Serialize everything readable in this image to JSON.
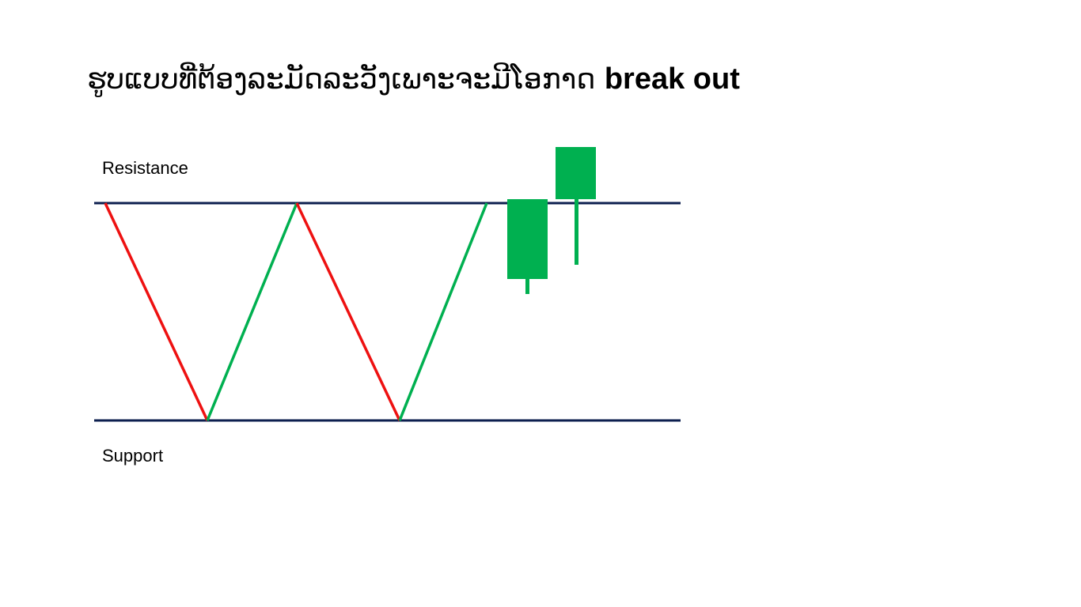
{
  "slide": {
    "title_main": "ຮູບແບບທີ່ຕ້ອງລະມັດລະວັງເພາະຈະມີໂອກາດ ",
    "title_emphasis": "break out"
  },
  "diagram": {
    "resistance_label": "Resistance",
    "support_label": "Support"
  },
  "colors": {
    "level_line": "#0d1f4f",
    "down_leg": "#ee1111",
    "up_leg": "#00b050",
    "candle": "#00b050"
  }
}
